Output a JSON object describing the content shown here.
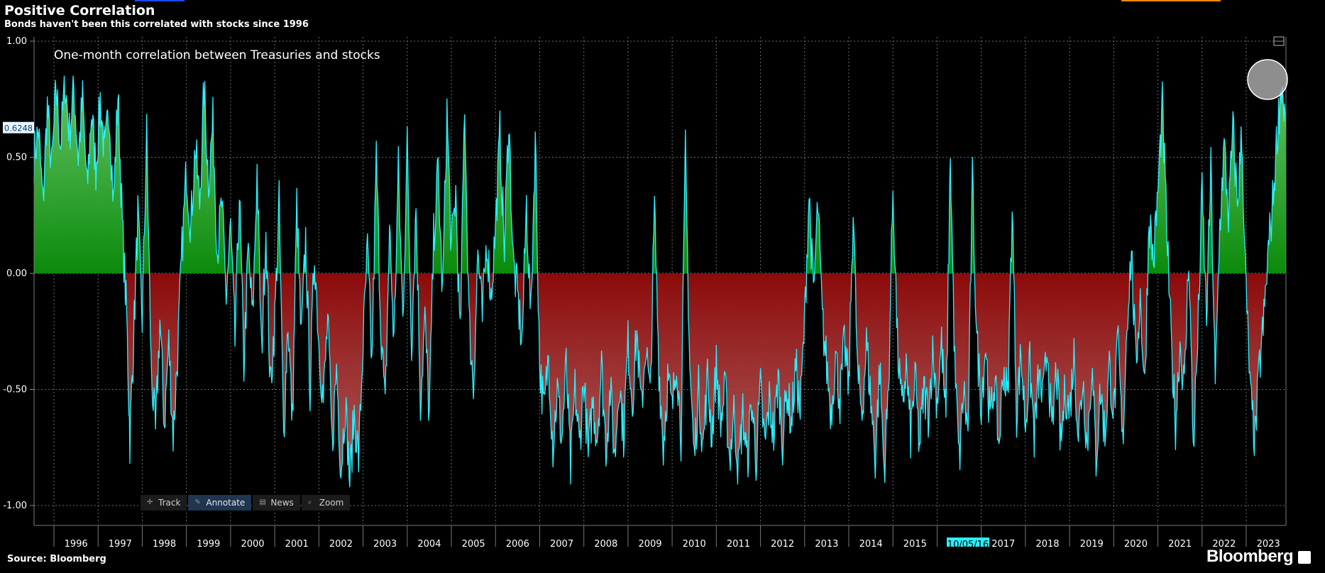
{
  "header": {
    "title": "Positive Correlation",
    "subtitle": "Bonds haven't been this correlated with stocks since 1996"
  },
  "footer": {
    "source": "Source: Bloomberg",
    "brand": "Bloomberg"
  },
  "toolbar": {
    "items": [
      {
        "label": "Track",
        "icon": "crosshair-icon",
        "active": false
      },
      {
        "label": "Annotate",
        "icon": "pencil-icon",
        "active": true
      },
      {
        "label": "News",
        "icon": "news-icon",
        "active": false
      },
      {
        "label": "Zoom",
        "icon": "magnifier-icon",
        "active": false
      }
    ]
  },
  "chart_data": {
    "type": "area",
    "title": "",
    "annotation": "One-month correlation between Treasuries and stocks",
    "xlabel": "",
    "ylabel": "",
    "ylim": [
      -1.0,
      1.0
    ],
    "y_ticks": [
      "1.00",
      "0.50",
      "0.00",
      "-0.50",
      "-1.00"
    ],
    "x_ticks": [
      "1996",
      "1997",
      "1998",
      "1999",
      "2000",
      "2001",
      "2002",
      "2003",
      "2004",
      "2005",
      "2006",
      "2007",
      "2008",
      "2009",
      "2010",
      "2011",
      "2012",
      "2013",
      "2014",
      "2015",
      "2017",
      "2018",
      "2019",
      "2020",
      "2021",
      "2022",
      "2023"
    ],
    "x_range": [
      1995.55,
      2023.9
    ],
    "cursor_date_label": "10/05/16",
    "last_value_label": "0.6248",
    "grid": true,
    "colors": {
      "line": "#29f0ff",
      "positive_fill": "#0b8a0b",
      "negative_fill": "#8c0a0a",
      "grid": "#6b6b6b",
      "axis_label_bg": "#e9f8ff",
      "cursor_label_bg": "#29f0ff"
    },
    "series": [
      {
        "values": [
          [
            1995.55,
            0.5
          ],
          [
            1995.65,
            0.62
          ],
          [
            1995.75,
            0.3
          ],
          [
            1995.85,
            0.72
          ],
          [
            1995.95,
            0.45
          ],
          [
            1996.05,
            0.8
          ],
          [
            1996.15,
            0.55
          ],
          [
            1996.25,
            0.83
          ],
          [
            1996.35,
            0.6
          ],
          [
            1996.45,
            0.8
          ],
          [
            1996.55,
            0.5
          ],
          [
            1996.65,
            0.75
          ],
          [
            1996.75,
            0.35
          ],
          [
            1996.85,
            0.7
          ],
          [
            1996.95,
            0.45
          ],
          [
            1997.05,
            0.75
          ],
          [
            1997.15,
            0.5
          ],
          [
            1997.25,
            0.72
          ],
          [
            1997.35,
            0.3
          ],
          [
            1997.45,
            0.78
          ],
          [
            1997.55,
            0.2
          ],
          [
            1997.65,
            -0.2
          ],
          [
            1997.72,
            -0.72
          ],
          [
            1997.8,
            -0.3
          ],
          [
            1997.9,
            0.25
          ],
          [
            1998.0,
            -0.2
          ],
          [
            1998.1,
            0.6
          ],
          [
            1998.2,
            -0.4
          ],
          [
            1998.3,
            -0.7
          ],
          [
            1998.4,
            -0.2
          ],
          [
            1998.5,
            -0.65
          ],
          [
            1998.6,
            -0.3
          ],
          [
            1998.7,
            -0.7
          ],
          [
            1998.8,
            -0.35
          ],
          [
            1998.9,
            0.1
          ],
          [
            1999.0,
            0.45
          ],
          [
            1999.1,
            0.2
          ],
          [
            1999.2,
            0.55
          ],
          [
            1999.3,
            0.3
          ],
          [
            1999.4,
            0.8
          ],
          [
            1999.5,
            0.4
          ],
          [
            1999.6,
            0.65
          ],
          [
            1999.7,
            0.1
          ],
          [
            1999.8,
            0.3
          ],
          [
            1999.9,
            -0.1
          ],
          [
            2000.0,
            0.2
          ],
          [
            2000.1,
            -0.3
          ],
          [
            2000.2,
            0.35
          ],
          [
            2000.3,
            -0.4
          ],
          [
            2000.4,
            0.1
          ],
          [
            2000.5,
            -0.2
          ],
          [
            2000.6,
            0.45
          ],
          [
            2000.7,
            -0.35
          ],
          [
            2000.8,
            0.2
          ],
          [
            2000.9,
            -0.5
          ],
          [
            2001.0,
            -0.2
          ],
          [
            2001.1,
            0.3
          ],
          [
            2001.2,
            -0.7
          ],
          [
            2001.3,
            -0.2
          ],
          [
            2001.4,
            -0.65
          ],
          [
            2001.5,
            0.3
          ],
          [
            2001.6,
            -0.3
          ],
          [
            2001.7,
            0.15
          ],
          [
            2001.8,
            -0.5
          ],
          [
            2001.9,
            0.1
          ],
          [
            2002.0,
            -0.3
          ],
          [
            2002.1,
            -0.55
          ],
          [
            2002.2,
            -0.2
          ],
          [
            2002.3,
            -0.75
          ],
          [
            2002.4,
            -0.4
          ],
          [
            2002.5,
            -0.85
          ],
          [
            2002.6,
            -0.55
          ],
          [
            2002.7,
            -0.9
          ],
          [
            2002.8,
            -0.6
          ],
          [
            2002.9,
            -0.8
          ],
          [
            2003.0,
            -0.3
          ],
          [
            2003.1,
            0.1
          ],
          [
            2003.2,
            -0.4
          ],
          [
            2003.3,
            0.5
          ],
          [
            2003.4,
            -0.2
          ],
          [
            2003.5,
            -0.6
          ],
          [
            2003.6,
            0.2
          ],
          [
            2003.7,
            -0.3
          ],
          [
            2003.8,
            0.45
          ],
          [
            2003.9,
            -0.2
          ],
          [
            2004.0,
            0.55
          ],
          [
            2004.1,
            -0.3
          ],
          [
            2004.2,
            0.3
          ],
          [
            2004.3,
            -0.55
          ],
          [
            2004.4,
            -0.2
          ],
          [
            2004.5,
            -0.62
          ],
          [
            2004.6,
            0.15
          ],
          [
            2004.7,
            0.45
          ],
          [
            2004.8,
            -0.1
          ],
          [
            2004.9,
            0.7
          ],
          [
            2005.0,
            0.1
          ],
          [
            2005.1,
            0.35
          ],
          [
            2005.2,
            -0.3
          ],
          [
            2005.3,
            0.75
          ],
          [
            2005.4,
            -0.2
          ],
          [
            2005.5,
            -0.5
          ],
          [
            2005.6,
            0.1
          ],
          [
            2005.7,
            -0.2
          ],
          [
            2005.8,
            0.15
          ],
          [
            2005.9,
            -0.1
          ],
          [
            2006.0,
            0.2
          ],
          [
            2006.1,
            0.6
          ],
          [
            2006.2,
            0.1
          ],
          [
            2006.3,
            0.68
          ],
          [
            2006.4,
            0.05
          ],
          [
            2006.5,
            -0.1
          ],
          [
            2006.6,
            -0.3
          ],
          [
            2006.7,
            0.3
          ],
          [
            2006.8,
            -0.2
          ],
          [
            2006.9,
            0.6
          ],
          [
            2007.0,
            -0.4
          ],
          [
            2007.1,
            -0.6
          ],
          [
            2007.2,
            -0.35
          ],
          [
            2007.3,
            -0.75
          ],
          [
            2007.4,
            -0.5
          ],
          [
            2007.5,
            -0.72
          ],
          [
            2007.6,
            -0.4
          ],
          [
            2007.7,
            -0.85
          ],
          [
            2007.8,
            -0.5
          ],
          [
            2007.9,
            -0.75
          ],
          [
            2008.0,
            -0.45
          ],
          [
            2008.1,
            -0.8
          ],
          [
            2008.2,
            -0.55
          ],
          [
            2008.3,
            -0.7
          ],
          [
            2008.4,
            -0.4
          ],
          [
            2008.5,
            -0.75
          ],
          [
            2008.6,
            -0.5
          ],
          [
            2008.7,
            -0.8
          ],
          [
            2008.8,
            -0.45
          ],
          [
            2008.9,
            -0.7
          ],
          [
            2009.0,
            -0.3
          ],
          [
            2009.1,
            -0.55
          ],
          [
            2009.2,
            -0.25
          ],
          [
            2009.3,
            -0.6
          ],
          [
            2009.4,
            -0.3
          ],
          [
            2009.5,
            -0.55
          ],
          [
            2009.6,
            0.28
          ],
          [
            2009.7,
            -0.4
          ],
          [
            2009.8,
            -0.75
          ],
          [
            2009.9,
            -0.45
          ],
          [
            2010.0,
            -0.6
          ],
          [
            2010.1,
            -0.35
          ],
          [
            2010.2,
            -0.7
          ],
          [
            2010.3,
            0.52
          ],
          [
            2010.4,
            -0.4
          ],
          [
            2010.5,
            -0.8
          ],
          [
            2010.6,
            -0.5
          ],
          [
            2010.7,
            -0.75
          ],
          [
            2010.8,
            -0.45
          ],
          [
            2010.9,
            -0.7
          ],
          [
            2011.0,
            -0.4
          ],
          [
            2011.1,
            -0.65
          ],
          [
            2011.2,
            -0.5
          ],
          [
            2011.3,
            -0.8
          ],
          [
            2011.4,
            -0.6
          ],
          [
            2011.5,
            -0.85
          ],
          [
            2011.6,
            -0.6
          ],
          [
            2011.7,
            -0.82
          ],
          [
            2011.8,
            -0.55
          ],
          [
            2011.9,
            -0.8
          ],
          [
            2012.0,
            -0.5
          ],
          [
            2012.1,
            -0.75
          ],
          [
            2012.2,
            -0.55
          ],
          [
            2012.3,
            -0.7
          ],
          [
            2012.4,
            -0.45
          ],
          [
            2012.5,
            -0.72
          ],
          [
            2012.6,
            -0.5
          ],
          [
            2012.7,
            -0.65
          ],
          [
            2012.8,
            -0.4
          ],
          [
            2012.9,
            -0.6
          ],
          [
            2013.0,
            -0.2
          ],
          [
            2013.1,
            0.35
          ],
          [
            2013.2,
            -0.1
          ],
          [
            2013.3,
            0.3
          ],
          [
            2013.4,
            -0.2
          ],
          [
            2013.5,
            -0.4
          ],
          [
            2013.6,
            -0.6
          ],
          [
            2013.7,
            -0.35
          ],
          [
            2013.8,
            -0.55
          ],
          [
            2013.9,
            -0.3
          ],
          [
            2014.0,
            -0.5
          ],
          [
            2014.1,
            0.3
          ],
          [
            2014.2,
            -0.45
          ],
          [
            2014.3,
            -0.6
          ],
          [
            2014.4,
            -0.3
          ],
          [
            2014.5,
            -0.55
          ],
          [
            2014.6,
            -0.8
          ],
          [
            2014.7,
            -0.4
          ],
          [
            2014.8,
            -0.85
          ],
          [
            2014.9,
            -0.5
          ],
          [
            2015.0,
            0.38
          ],
          [
            2015.1,
            -0.3
          ],
          [
            2015.2,
            -0.6
          ],
          [
            2015.3,
            -0.4
          ],
          [
            2015.4,
            -0.7
          ],
          [
            2015.5,
            -0.45
          ],
          [
            2015.6,
            -0.75
          ],
          [
            2015.7,
            -0.5
          ],
          [
            2015.8,
            -0.6
          ],
          [
            2015.9,
            -0.35
          ],
          [
            2016.0,
            -0.55
          ],
          [
            2016.1,
            -0.3
          ],
          [
            2016.2,
            -0.65
          ],
          [
            2016.3,
            0.52
          ],
          [
            2016.4,
            -0.4
          ],
          [
            2016.5,
            -0.82
          ],
          [
            2016.6,
            -0.5
          ],
          [
            2016.7,
            -0.7
          ],
          [
            2016.8,
            0.4
          ],
          [
            2016.9,
            -0.3
          ],
          [
            2017.0,
            -0.55
          ],
          [
            2017.1,
            -0.3
          ],
          [
            2017.2,
            -0.65
          ],
          [
            2017.3,
            -0.45
          ],
          [
            2017.4,
            -0.75
          ],
          [
            2017.5,
            -0.4
          ],
          [
            2017.6,
            -0.55
          ],
          [
            2017.7,
            0.3
          ],
          [
            2017.8,
            -0.6
          ],
          [
            2017.9,
            -0.35
          ],
          [
            2018.0,
            -0.65
          ],
          [
            2018.1,
            -0.4
          ],
          [
            2018.2,
            -0.7
          ],
          [
            2018.3,
            -0.45
          ],
          [
            2018.4,
            -0.55
          ],
          [
            2018.5,
            -0.3
          ],
          [
            2018.6,
            -0.72
          ],
          [
            2018.7,
            -0.4
          ],
          [
            2018.8,
            -0.75
          ],
          [
            2018.9,
            -0.5
          ],
          [
            2019.0,
            -0.6
          ],
          [
            2019.1,
            -0.35
          ],
          [
            2019.2,
            -0.7
          ],
          [
            2019.3,
            -0.45
          ],
          [
            2019.4,
            -0.75
          ],
          [
            2019.5,
            -0.4
          ],
          [
            2019.6,
            -0.8
          ],
          [
            2019.7,
            -0.5
          ],
          [
            2019.8,
            -0.7
          ],
          [
            2019.9,
            -0.4
          ],
          [
            2020.0,
            -0.6
          ],
          [
            2020.1,
            -0.3
          ],
          [
            2020.2,
            -0.75
          ],
          [
            2020.3,
            -0.2
          ],
          [
            2020.4,
            0.1
          ],
          [
            2020.5,
            -0.4
          ],
          [
            2020.6,
            -0.1
          ],
          [
            2020.7,
            -0.5
          ],
          [
            2020.8,
            0.25
          ],
          [
            2020.9,
            0.05
          ],
          [
            2021.0,
            0.35
          ],
          [
            2021.1,
            0.72
          ],
          [
            2021.2,
            0.2
          ],
          [
            2021.3,
            -0.3
          ],
          [
            2021.4,
            -0.65
          ],
          [
            2021.5,
            -0.3
          ],
          [
            2021.6,
            -0.5
          ],
          [
            2021.7,
            0.1
          ],
          [
            2021.8,
            -0.75
          ],
          [
            2021.9,
            -0.3
          ],
          [
            2022.0,
            0.35
          ],
          [
            2022.1,
            -0.2
          ],
          [
            2022.2,
            0.45
          ],
          [
            2022.3,
            -0.5
          ],
          [
            2022.4,
            0.2
          ],
          [
            2022.5,
            0.55
          ],
          [
            2022.6,
            0.25
          ],
          [
            2022.7,
            0.62
          ],
          [
            2022.8,
            0.3
          ],
          [
            2022.9,
            0.6
          ],
          [
            2023.0,
            -0.1
          ],
          [
            2023.1,
            -0.55
          ],
          [
            2023.2,
            -0.72
          ],
          [
            2023.3,
            -0.4
          ],
          [
            2023.4,
            -0.2
          ],
          [
            2023.5,
            0.1
          ],
          [
            2023.6,
            0.3
          ],
          [
            2023.7,
            0.6
          ],
          [
            2023.8,
            0.82
          ],
          [
            2023.9,
            0.62
          ]
        ]
      }
    ]
  }
}
